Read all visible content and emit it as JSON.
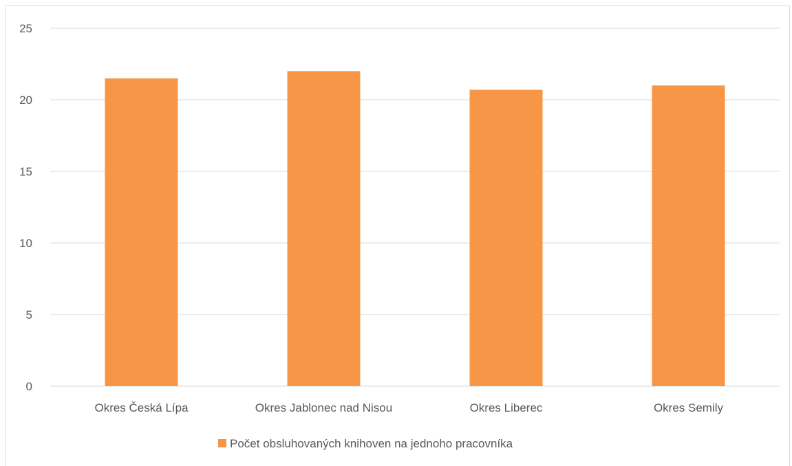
{
  "chart_data": {
    "type": "bar",
    "categories": [
      "Okres Česká Lípa",
      "Okres Jablonec nad Nisou",
      "Okres Liberec",
      "Okres Semily"
    ],
    "series": [
      {
        "name": "Počet obsluhovaných knihoven na jednoho pracovníka",
        "values": [
          21.5,
          22,
          20.7,
          21
        ],
        "color": "#F79646"
      }
    ],
    "ylim": [
      0,
      25
    ],
    "yticks": [
      0,
      5,
      10,
      15,
      20,
      25
    ],
    "grid": true,
    "legend_position": "bottom",
    "gridline_color": "#D9D9D9",
    "title": "",
    "xlabel": "",
    "ylabel": ""
  }
}
